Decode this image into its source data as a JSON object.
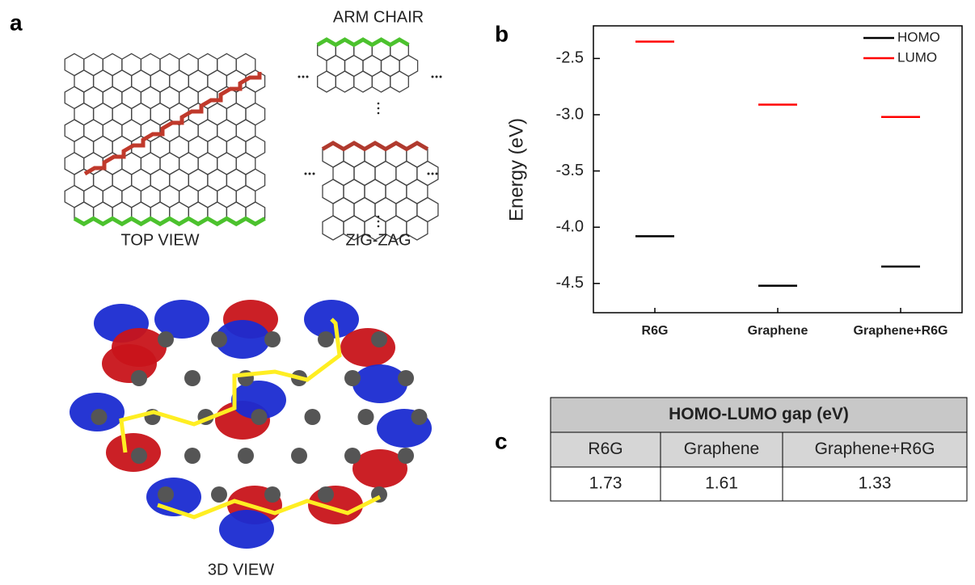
{
  "panel_labels": [
    "a",
    "b",
    "c"
  ],
  "diagram": {
    "top_view": "TOP VIEW",
    "arm_chair": "ARM CHAIR",
    "zig_zag": "ZIG-ZAG",
    "view_3d": "3D VIEW"
  },
  "chart_data": {
    "type": "level",
    "y_label": "Energy (eV)",
    "categories": [
      "R6G",
      "Graphene",
      "Graphene+R6G"
    ],
    "series": [
      {
        "name": "HOMO",
        "color": "#000000",
        "values": [
          -4.08,
          -4.52,
          -4.35
        ]
      },
      {
        "name": "LUMO",
        "color": "#ff0000",
        "values": [
          -2.35,
          -2.91,
          -3.02
        ]
      }
    ],
    "ylim": [
      -4.76,
      -2.21
    ],
    "yticks": [
      -2.5,
      {
        "value": -3,
        "label": "-3.0"
      },
      -3.5,
      {
        "value": -4,
        "label": "-4.0"
      },
      -4.5
    ],
    "legend": "upper right"
  },
  "table": {
    "title": "HOMO-LUMO gap (eV)",
    "header": [
      "R6G",
      "Graphene",
      "Graphene+R6G"
    ],
    "rows": [
      [
        1.73,
        1.61,
        1.33
      ]
    ]
  }
}
